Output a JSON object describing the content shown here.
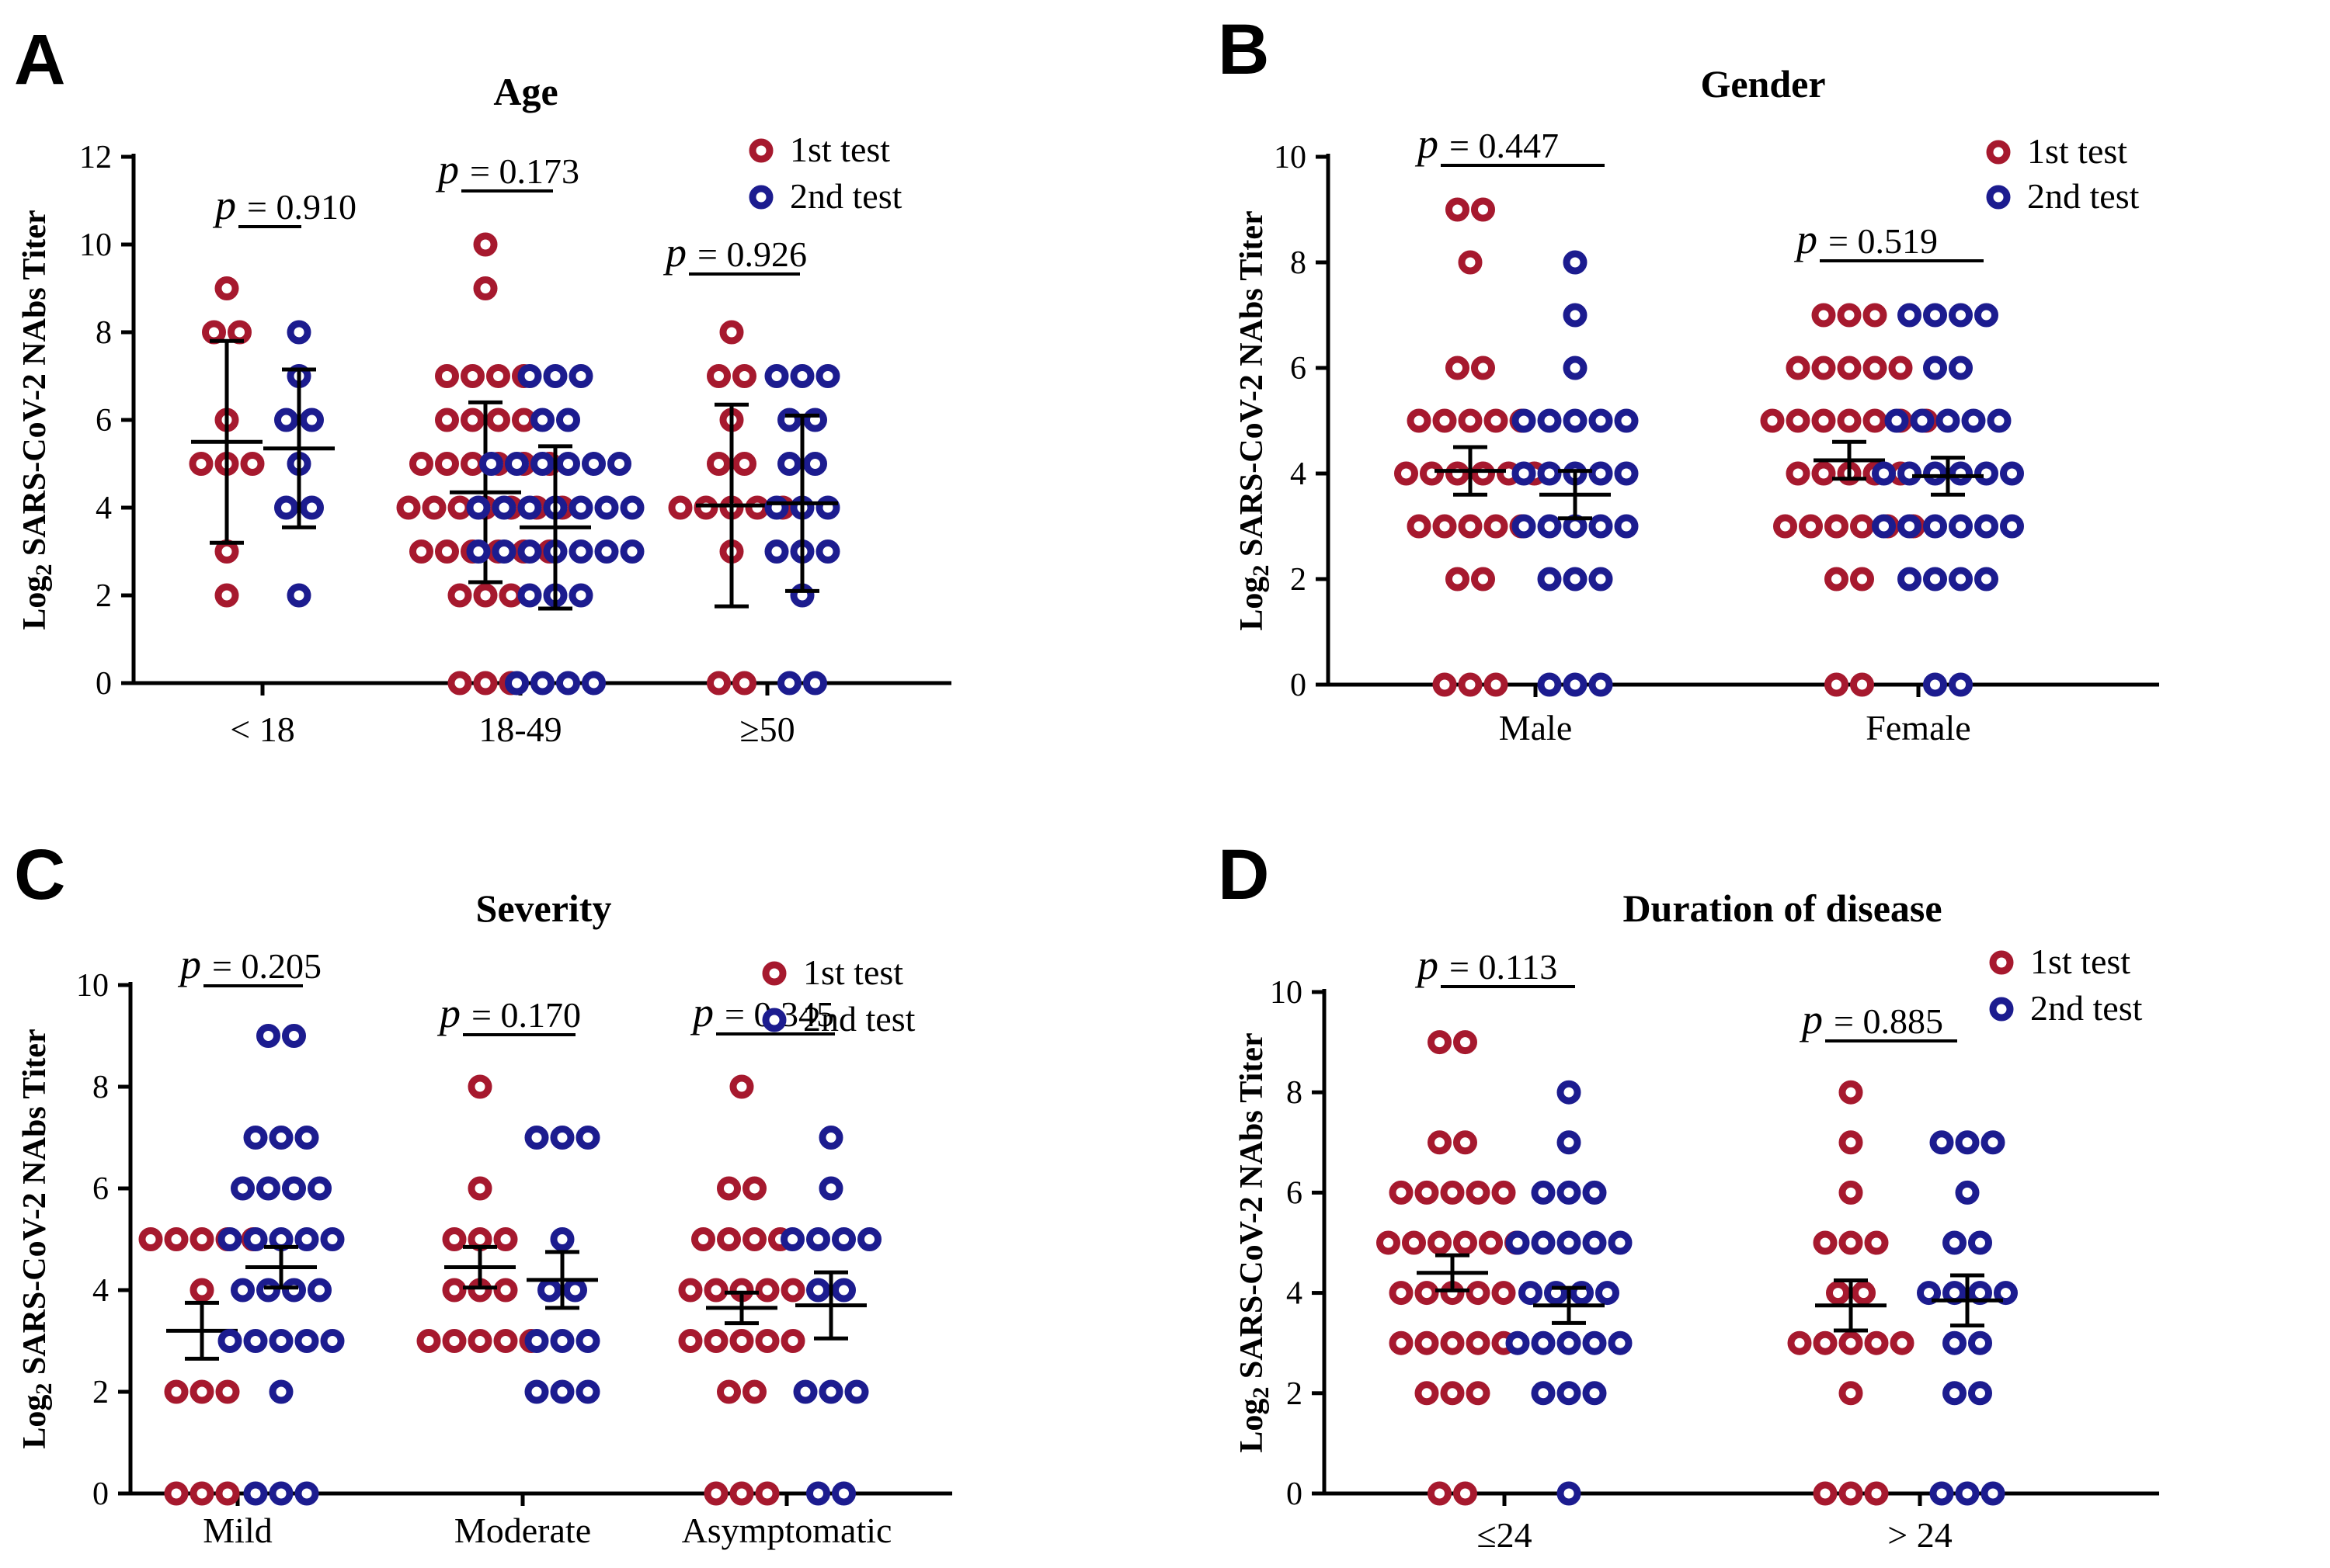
{
  "figure": {
    "y_axis_label": "Log2 SARS-CoV-2 NAbs Titer",
    "colors": {
      "first_test": "#a6192e",
      "second_test": "#1c1c8f",
      "axis": "#000000"
    }
  },
  "chart_data": [
    {
      "panel": "A",
      "type": "scatter",
      "title": "Age",
      "ylabel": "Log2 SARS-CoV-2 NAbs Titer",
      "ylim": [
        0,
        12
      ],
      "yticks": [
        "0",
        "2",
        "4",
        "6",
        "8",
        "10",
        "12"
      ],
      "legend": {
        "position": "top-right",
        "entries": [
          "1st test",
          "2nd test"
        ]
      },
      "categories": [
        "< 18",
        "18-49",
        "≥50"
      ],
      "groups": [
        {
          "category": "< 18",
          "p_label": "p",
          "p_value": "= 0.910",
          "first": {
            "values": [
              9,
              8,
              8,
              6,
              5,
              5,
              5,
              3,
              2
            ],
            "center": 5.5,
            "low": 3.2,
            "high": 7.8
          },
          "second": {
            "values": [
              8,
              7,
              6,
              6,
              5,
              4,
              4,
              2
            ],
            "center": 5.35,
            "low": 3.55,
            "high": 7.15
          }
        },
        {
          "category": "18-49",
          "p_label": "p",
          "p_value": "= 0.173",
          "first": {
            "values": [
              10,
              9,
              7,
              7,
              7,
              7,
              6,
              6,
              6,
              6,
              5,
              5,
              5,
              5,
              5,
              5,
              4,
              4,
              4,
              4,
              4,
              4,
              4,
              3,
              3,
              3,
              3,
              3,
              3,
              2,
              2,
              2,
              0,
              0,
              0
            ],
            "center": 4.35,
            "low": 2.3,
            "high": 6.4
          },
          "second": {
            "values": [
              7,
              7,
              7,
              6,
              6,
              5,
              5,
              5,
              5,
              5,
              5,
              4,
              4,
              4,
              4,
              4,
              4,
              4,
              3,
              3,
              3,
              3,
              3,
              3,
              3,
              2,
              2,
              2,
              0,
              0,
              0,
              0
            ],
            "center": 3.55,
            "low": 1.7,
            "high": 5.4
          }
        },
        {
          "category": "≥50",
          "p_label": "p",
          "p_value": "= 0.926",
          "first": {
            "values": [
              8,
              7,
              7,
              6,
              5,
              5,
              4,
              4,
              4,
              4,
              4,
              3,
              0,
              0
            ],
            "center": 4.05,
            "low": 1.75,
            "high": 6.35
          },
          "second": {
            "values": [
              7,
              7,
              7,
              6,
              6,
              5,
              5,
              4,
              4,
              4,
              3,
              3,
              3,
              2,
              0,
              0
            ],
            "center": 4.1,
            "low": 2.1,
            "high": 6.1
          }
        }
      ]
    },
    {
      "panel": "B",
      "type": "scatter",
      "title": "Gender",
      "ylabel": "Log2 SARS-CoV-2 NAbs Titer",
      "ylim": [
        0,
        10
      ],
      "yticks": [
        "0",
        "2",
        "4",
        "6",
        "8",
        "10"
      ],
      "legend": {
        "position": "top-right",
        "entries": [
          "1st test",
          "2nd test"
        ]
      },
      "categories": [
        "Male",
        "Female"
      ],
      "groups": [
        {
          "category": "Male",
          "p_label": "p",
          "p_value": "= 0.447",
          "first": {
            "values": [
              9,
              9,
              8,
              6,
              6,
              5,
              5,
              5,
              5,
              5,
              4,
              4,
              4,
              4,
              4,
              4,
              3,
              3,
              3,
              3,
              3,
              2,
              2,
              0,
              0,
              0
            ],
            "center": 4.05,
            "low": 3.6,
            "high": 4.5
          },
          "second": {
            "values": [
              8,
              7,
              6,
              5,
              5,
              5,
              5,
              5,
              4,
              4,
              4,
              4,
              4,
              3,
              3,
              3,
              3,
              3,
              2,
              2,
              2,
              0,
              0,
              0
            ],
            "center": 3.6,
            "low": 3.15,
            "high": 4.05
          }
        },
        {
          "category": "Female",
          "p_label": "p",
          "p_value": "= 0.519",
          "first": {
            "values": [
              7,
              7,
              7,
              6,
              6,
              6,
              6,
              6,
              5,
              5,
              5,
              5,
              5,
              5,
              5,
              4,
              4,
              4,
              4,
              4,
              3,
              3,
              3,
              3,
              3,
              3,
              2,
              2,
              0,
              0
            ],
            "center": 4.25,
            "low": 3.9,
            "high": 4.6
          },
          "second": {
            "values": [
              7,
              7,
              7,
              7,
              6,
              6,
              5,
              5,
              5,
              5,
              5,
              4,
              4,
              4,
              4,
              4,
              4,
              3,
              3,
              3,
              3,
              3,
              3,
              2,
              2,
              2,
              2,
              0,
              0
            ],
            "center": 3.95,
            "low": 3.6,
            "high": 4.3
          }
        }
      ]
    },
    {
      "panel": "C",
      "type": "scatter",
      "title": "Severity",
      "ylabel": "Log2 SARS-CoV-2 NAbs Titer",
      "ylim": [
        0,
        10
      ],
      "yticks": [
        "0",
        "2",
        "4",
        "6",
        "8",
        "10"
      ],
      "legend": {
        "position": "top-right",
        "entries": [
          "1st test",
          "2nd test"
        ]
      },
      "categories": [
        "Mild",
        "Moderate",
        "Asymptomatic"
      ],
      "groups": [
        {
          "category": "Mild",
          "p_label": "p",
          "p_value": "= 0.205",
          "first": {
            "values": [
              5,
              5,
              5,
              5,
              5,
              4,
              2,
              2,
              2,
              0,
              0,
              0
            ],
            "center": 3.2,
            "low": 2.65,
            "high": 3.75
          },
          "second": {
            "values": [
              9,
              9,
              7,
              7,
              7,
              6,
              6,
              6,
              6,
              5,
              5,
              5,
              5,
              5,
              4,
              4,
              4,
              4,
              3,
              3,
              3,
              3,
              3,
              2,
              0,
              0,
              0
            ],
            "center": 4.45,
            "low": 4.05,
            "high": 4.85
          }
        },
        {
          "category": "Moderate",
          "p_label": "p",
          "p_value": "= 0.170",
          "first": {
            "values": [
              8,
              6,
              5,
              5,
              5,
              4,
              4,
              4,
              3,
              3,
              3,
              3,
              3
            ],
            "center": 4.45,
            "low": 4.05,
            "high": 4.85
          },
          "second": {
            "values": [
              7,
              7,
              7,
              5,
              4,
              4,
              3,
              3,
              3,
              2,
              2,
              2
            ],
            "center": 4.2,
            "low": 3.65,
            "high": 4.75
          }
        },
        {
          "category": "Asymptomatic",
          "p_label": "p",
          "p_value": "= 0.345",
          "first": {
            "values": [
              8,
              6,
              6,
              5,
              5,
              5,
              5,
              4,
              4,
              4,
              4,
              4,
              3,
              3,
              3,
              3,
              3,
              2,
              2,
              0,
              0,
              0
            ],
            "center": 3.65,
            "low": 3.35,
            "high": 3.95
          },
          "second": {
            "values": [
              7,
              6,
              5,
              5,
              5,
              5,
              4,
              4,
              2,
              2,
              2,
              0,
              0
            ],
            "center": 3.7,
            "low": 3.05,
            "high": 4.35
          }
        }
      ]
    },
    {
      "panel": "D",
      "type": "scatter",
      "title": "Duration of disease",
      "ylabel": "Log2 SARS-CoV-2 NAbs Titer",
      "ylim": [
        0,
        10
      ],
      "yticks": [
        "0",
        "2",
        "4",
        "6",
        "8",
        "10"
      ],
      "legend": {
        "position": "top-right",
        "entries": [
          "1st test",
          "2nd test"
        ]
      },
      "categories": [
        "≤24",
        "> 24"
      ],
      "groups": [
        {
          "category": "≤24",
          "p_label": "p",
          "p_value": "= 0.113",
          "first": {
            "values": [
              9,
              9,
              7,
              7,
              6,
              6,
              6,
              6,
              6,
              5,
              5,
              5,
              5,
              5,
              5,
              4,
              4,
              4,
              4,
              4,
              3,
              3,
              3,
              3,
              3,
              2,
              2,
              2,
              0,
              0
            ],
            "center": 4.4,
            "low": 4.05,
            "high": 4.75
          },
          "second": {
            "values": [
              8,
              7,
              6,
              6,
              6,
              5,
              5,
              5,
              5,
              5,
              4,
              4,
              4,
              4,
              3,
              3,
              3,
              3,
              3,
              2,
              2,
              2,
              0
            ],
            "center": 3.75,
            "low": 3.4,
            "high": 4.1
          }
        },
        {
          "category": "> 24",
          "p_label": "p",
          "p_value": "= 0.885",
          "first": {
            "values": [
              8,
              7,
              6,
              5,
              5,
              5,
              4,
              4,
              3,
              3,
              3,
              3,
              3,
              2,
              0,
              0,
              0
            ],
            "center": 3.75,
            "low": 3.25,
            "high": 4.25
          },
          "second": {
            "values": [
              7,
              7,
              7,
              6,
              5,
              5,
              4,
              4,
              4,
              4,
              3,
              3,
              2,
              2,
              0,
              0,
              0
            ],
            "center": 3.85,
            "low": 3.35,
            "high": 4.35
          }
        }
      ]
    }
  ]
}
